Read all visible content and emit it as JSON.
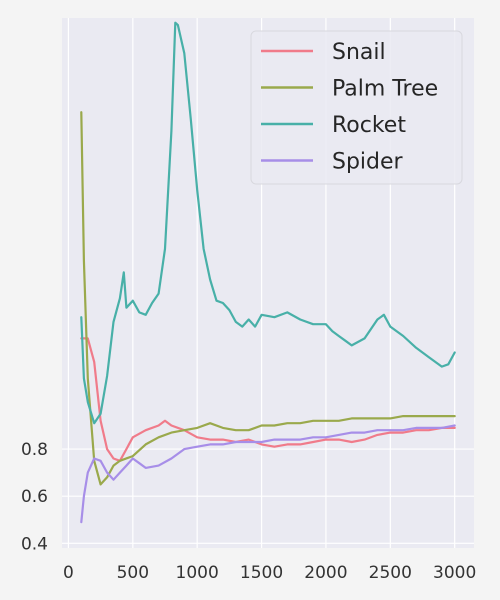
{
  "chart_data": {
    "type": "line",
    "title": "",
    "xlabel": "",
    "ylabel": "",
    "xlim": [
      -50,
      3150
    ],
    "ylim": [
      0.38,
      2.63
    ],
    "x_ticks": [
      0,
      500,
      1000,
      1500,
      2000,
      2500,
      3000
    ],
    "x_tick_labels": [
      "0",
      "500",
      "1000",
      "1500",
      "2000",
      "2500",
      "3000"
    ],
    "y_ticks": [
      0.4,
      0.6,
      0.8
    ],
    "y_tick_labels": [
      "0.4",
      "0.6",
      "0.8"
    ],
    "grid": true,
    "legend_position": "top-right",
    "series": [
      {
        "name": "Snail",
        "color": "#f07b8a",
        "points": [
          [
            100,
            1.27
          ],
          [
            150,
            1.27
          ],
          [
            200,
            1.17
          ],
          [
            250,
            0.92
          ],
          [
            300,
            0.8
          ],
          [
            350,
            0.76
          ],
          [
            400,
            0.75
          ],
          [
            450,
            0.8
          ],
          [
            500,
            0.85
          ],
          [
            600,
            0.88
          ],
          [
            700,
            0.9
          ],
          [
            750,
            0.92
          ],
          [
            800,
            0.9
          ],
          [
            900,
            0.88
          ],
          [
            1000,
            0.85
          ],
          [
            1100,
            0.84
          ],
          [
            1200,
            0.84
          ],
          [
            1300,
            0.83
          ],
          [
            1400,
            0.84
          ],
          [
            1500,
            0.82
          ],
          [
            1600,
            0.81
          ],
          [
            1700,
            0.82
          ],
          [
            1800,
            0.82
          ],
          [
            1900,
            0.83
          ],
          [
            2000,
            0.84
          ],
          [
            2100,
            0.84
          ],
          [
            2200,
            0.83
          ],
          [
            2300,
            0.84
          ],
          [
            2400,
            0.86
          ],
          [
            2500,
            0.87
          ],
          [
            2600,
            0.87
          ],
          [
            2700,
            0.88
          ],
          [
            2800,
            0.88
          ],
          [
            2900,
            0.89
          ],
          [
            3000,
            0.89
          ]
        ]
      },
      {
        "name": "Palm Tree",
        "color": "#9aa94c",
        "points": [
          [
            100,
            2.23
          ],
          [
            120,
            1.6
          ],
          [
            150,
            1.1
          ],
          [
            200,
            0.75
          ],
          [
            250,
            0.65
          ],
          [
            300,
            0.68
          ],
          [
            350,
            0.73
          ],
          [
            400,
            0.75
          ],
          [
            500,
            0.77
          ],
          [
            600,
            0.82
          ],
          [
            700,
            0.85
          ],
          [
            800,
            0.87
          ],
          [
            900,
            0.88
          ],
          [
            1000,
            0.89
          ],
          [
            1100,
            0.91
          ],
          [
            1200,
            0.89
          ],
          [
            1300,
            0.88
          ],
          [
            1400,
            0.88
          ],
          [
            1500,
            0.9
          ],
          [
            1600,
            0.9
          ],
          [
            1700,
            0.91
          ],
          [
            1800,
            0.91
          ],
          [
            1900,
            0.92
          ],
          [
            2000,
            0.92
          ],
          [
            2100,
            0.92
          ],
          [
            2200,
            0.93
          ],
          [
            2300,
            0.93
          ],
          [
            2400,
            0.93
          ],
          [
            2500,
            0.93
          ],
          [
            2600,
            0.94
          ],
          [
            2700,
            0.94
          ],
          [
            2800,
            0.94
          ],
          [
            2900,
            0.94
          ],
          [
            3000,
            0.94
          ]
        ]
      },
      {
        "name": "Rocket",
        "color": "#48b0a8",
        "points": [
          [
            100,
            1.36
          ],
          [
            120,
            1.1
          ],
          [
            150,
            1.0
          ],
          [
            200,
            0.91
          ],
          [
            250,
            0.95
          ],
          [
            300,
            1.11
          ],
          [
            350,
            1.34
          ],
          [
            400,
            1.44
          ],
          [
            430,
            1.55
          ],
          [
            450,
            1.4
          ],
          [
            500,
            1.43
          ],
          [
            550,
            1.38
          ],
          [
            600,
            1.37
          ],
          [
            650,
            1.42
          ],
          [
            700,
            1.46
          ],
          [
            750,
            1.65
          ],
          [
            800,
            2.15
          ],
          [
            830,
            2.61
          ],
          [
            850,
            2.6
          ],
          [
            900,
            2.48
          ],
          [
            950,
            2.2
          ],
          [
            1000,
            1.9
          ],
          [
            1050,
            1.65
          ],
          [
            1100,
            1.52
          ],
          [
            1150,
            1.43
          ],
          [
            1200,
            1.42
          ],
          [
            1250,
            1.39
          ],
          [
            1300,
            1.34
          ],
          [
            1350,
            1.32
          ],
          [
            1400,
            1.35
          ],
          [
            1450,
            1.32
          ],
          [
            1500,
            1.37
          ],
          [
            1600,
            1.36
          ],
          [
            1700,
            1.38
          ],
          [
            1800,
            1.35
          ],
          [
            1900,
            1.33
          ],
          [
            2000,
            1.33
          ],
          [
            2050,
            1.3
          ],
          [
            2100,
            1.28
          ],
          [
            2150,
            1.26
          ],
          [
            2200,
            1.24
          ],
          [
            2300,
            1.27
          ],
          [
            2400,
            1.35
          ],
          [
            2450,
            1.37
          ],
          [
            2500,
            1.32
          ],
          [
            2600,
            1.28
          ],
          [
            2700,
            1.23
          ],
          [
            2800,
            1.19
          ],
          [
            2900,
            1.15
          ],
          [
            2950,
            1.16
          ],
          [
            3000,
            1.21
          ]
        ]
      },
      {
        "name": "Spider",
        "color": "#a78ee8",
        "points": [
          [
            100,
            0.49
          ],
          [
            120,
            0.6
          ],
          [
            150,
            0.7
          ],
          [
            200,
            0.76
          ],
          [
            250,
            0.75
          ],
          [
            300,
            0.7
          ],
          [
            350,
            0.67
          ],
          [
            400,
            0.7
          ],
          [
            450,
            0.73
          ],
          [
            500,
            0.76
          ],
          [
            550,
            0.74
          ],
          [
            600,
            0.72
          ],
          [
            700,
            0.73
          ],
          [
            800,
            0.76
          ],
          [
            900,
            0.8
          ],
          [
            1000,
            0.81
          ],
          [
            1100,
            0.82
          ],
          [
            1200,
            0.82
          ],
          [
            1300,
            0.83
          ],
          [
            1400,
            0.83
          ],
          [
            1500,
            0.83
          ],
          [
            1600,
            0.84
          ],
          [
            1700,
            0.84
          ],
          [
            1800,
            0.84
          ],
          [
            1900,
            0.85
          ],
          [
            2000,
            0.85
          ],
          [
            2100,
            0.86
          ],
          [
            2200,
            0.87
          ],
          [
            2300,
            0.87
          ],
          [
            2400,
            0.88
          ],
          [
            2500,
            0.88
          ],
          [
            2600,
            0.88
          ],
          [
            2700,
            0.89
          ],
          [
            2800,
            0.89
          ],
          [
            2900,
            0.89
          ],
          [
            3000,
            0.9
          ]
        ]
      }
    ]
  }
}
